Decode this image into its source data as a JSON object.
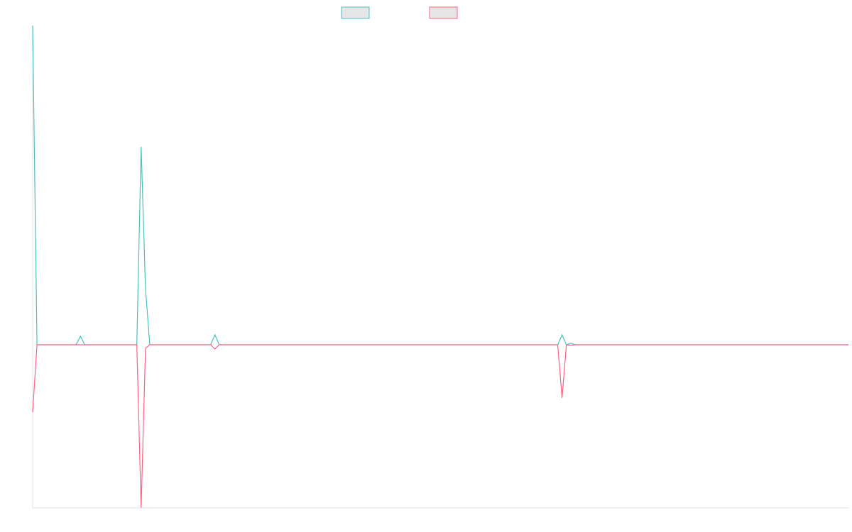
{
  "chart_data": {
    "type": "line",
    "x": [
      0,
      1,
      10,
      11,
      12,
      24,
      25,
      26,
      27,
      40,
      41,
      42,
      43,
      121,
      122,
      123,
      124,
      125,
      188
    ],
    "xlim": [
      0,
      188
    ],
    "ylim": [
      -230,
      450
    ],
    "series": [
      {
        "color": "#4bc0c0",
        "values": [
          450,
          0,
          0,
          12,
          0,
          0,
          279,
          79,
          0,
          0,
          0,
          14,
          0,
          0,
          14,
          0,
          2,
          0,
          0
        ]
      },
      {
        "color": "#ff6384",
        "values": [
          -95,
          0,
          0,
          0,
          0,
          0,
          -230,
          -5,
          0,
          0,
          0,
          -6,
          0,
          0,
          -75,
          0,
          -1,
          0,
          0
        ]
      }
    ],
    "legend": "top"
  }
}
